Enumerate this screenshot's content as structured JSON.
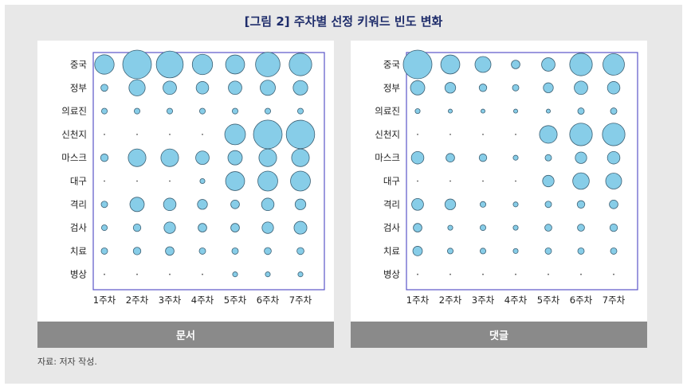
{
  "figure_title": "[그림 2] 주차별 선정 키워드 빈도 변화",
  "source_note": "자료: 저자 작성.",
  "colors": {
    "bubble_fill": "#87cde8",
    "bubble_stroke": "#3b5f73",
    "frame": "#5a55c8",
    "footer_bg": "#8a8a8a",
    "title": "#1f2d6b"
  },
  "chart_data": [
    {
      "type": "bubble",
      "title": "문서",
      "categories_y": [
        "중국",
        "정부",
        "의료진",
        "신천지",
        "마스크",
        "대구",
        "격리",
        "검사",
        "치료",
        "병상"
      ],
      "categories_x": [
        "1주차",
        "2주차",
        "3주차",
        "4주차",
        "5주차",
        "6주차",
        "7주차"
      ],
      "sizes": [
        [
          0.46,
          1.0,
          0.88,
          0.5,
          0.44,
          0.73,
          0.62
        ],
        [
          0.06,
          0.32,
          0.22,
          0.19,
          0.22,
          0.28,
          0.26
        ],
        [
          0.04,
          0.04,
          0.04,
          0.04,
          0.04,
          0.04,
          0.04
        ],
        [
          0.0,
          0.0,
          0.0,
          0.0,
          0.52,
          1.0,
          0.98
        ],
        [
          0.07,
          0.38,
          0.38,
          0.22,
          0.25,
          0.38,
          0.38
        ],
        [
          0.0,
          0.0,
          0.0,
          0.03,
          0.44,
          0.48,
          0.48
        ],
        [
          0.05,
          0.25,
          0.19,
          0.12,
          0.09,
          0.19,
          0.14
        ],
        [
          0.04,
          0.07,
          0.16,
          0.09,
          0.09,
          0.16,
          0.2
        ],
        [
          0.05,
          0.07,
          0.09,
          0.05,
          0.05,
          0.06,
          0.06
        ],
        [
          0.0,
          0.0,
          0.0,
          0.0,
          0.03,
          0.03,
          0.03
        ]
      ],
      "footer": "문서"
    },
    {
      "type": "bubble",
      "title": "댓글",
      "categories_y": [
        "중국",
        "정부",
        "의료진",
        "신천지",
        "마스크",
        "대구",
        "격리",
        "검사",
        "치료",
        "병상"
      ],
      "categories_x": [
        "1주차",
        "2주차",
        "3주차",
        "4주차",
        "5주차",
        "6주차",
        "7주차"
      ],
      "sizes": [
        [
          1.0,
          0.44,
          0.31,
          0.09,
          0.22,
          0.62,
          0.56
        ],
        [
          0.25,
          0.14,
          0.07,
          0.05,
          0.12,
          0.22,
          0.19
        ],
        [
          0.03,
          0.02,
          0.02,
          0.02,
          0.02,
          0.05,
          0.05
        ],
        [
          0.0,
          0.0,
          0.0,
          0.0,
          0.38,
          0.62,
          0.62
        ],
        [
          0.19,
          0.09,
          0.07,
          0.03,
          0.05,
          0.16,
          0.19
        ],
        [
          0.0,
          0.0,
          0.0,
          0.0,
          0.16,
          0.33,
          0.31
        ],
        [
          0.17,
          0.14,
          0.04,
          0.03,
          0.05,
          0.07,
          0.09
        ],
        [
          0.09,
          0.03,
          0.04,
          0.03,
          0.06,
          0.06,
          0.07
        ],
        [
          0.11,
          0.04,
          0.04,
          0.03,
          0.05,
          0.05,
          0.05
        ],
        [
          0.0,
          0.0,
          0.0,
          0.0,
          0.0,
          0.0,
          0.0
        ]
      ],
      "footer": "댓글"
    }
  ]
}
